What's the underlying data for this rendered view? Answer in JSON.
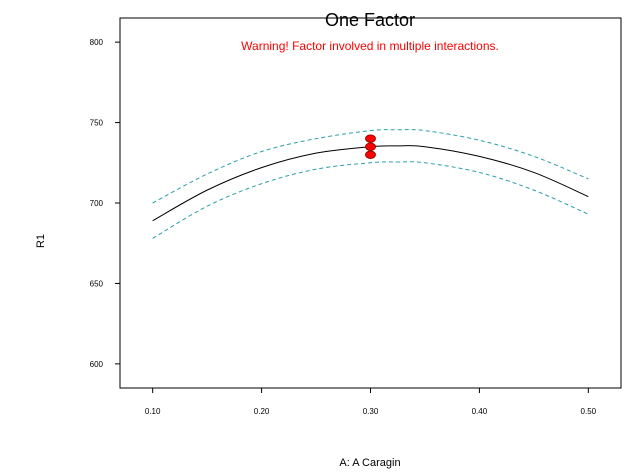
{
  "chart_data": {
    "type": "line",
    "title": "One Factor",
    "annotation": "Warning! Factor involved in multiple interactions.",
    "xlabel": "A: A Caragin",
    "ylabel": "R1",
    "xlim": [
      0.07,
      0.53
    ],
    "ylim": [
      585,
      815
    ],
    "x_ticks": [
      "0.10",
      "0.20",
      "0.30",
      "0.40",
      "0.50"
    ],
    "x_tick_values": [
      0.1,
      0.2,
      0.3,
      0.4,
      0.5
    ],
    "y_ticks": [
      "600",
      "650",
      "700",
      "750",
      "800"
    ],
    "y_tick_values": [
      600,
      650,
      700,
      750,
      800
    ],
    "grid": false,
    "x": [
      0.1,
      0.15,
      0.2,
      0.25,
      0.3,
      0.325,
      0.35,
      0.4,
      0.45,
      0.5
    ],
    "series": [
      {
        "style": "solid",
        "color": "#000000",
        "values": [
          689,
          708,
          722,
          731,
          735,
          735.5,
          735,
          729,
          719,
          704
        ]
      },
      {
        "style": "dashed",
        "color": "#2aa0a8",
        "values": [
          700,
          718,
          732,
          740,
          745,
          745.5,
          745,
          739,
          729,
          715
        ]
      },
      {
        "style": "dashed",
        "color": "#2aa0a8",
        "values": [
          678,
          698,
          712,
          721,
          725,
          725.5,
          725,
          719,
          708,
          693
        ]
      }
    ],
    "points": {
      "color": "#ff0000",
      "x": [
        0.3,
        0.3,
        0.3
      ],
      "y": [
        740,
        735,
        730
      ]
    }
  }
}
